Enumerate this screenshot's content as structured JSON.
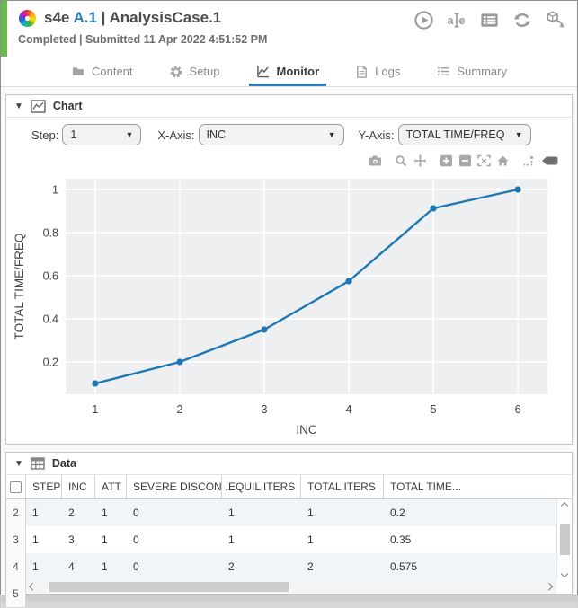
{
  "header": {
    "app_icon": "pinwheel-icon",
    "title_product": "s4e",
    "title_version": "A.1",
    "title_rest": " | AnalysisCase.1",
    "status_line": "Completed | Submitted 11 Apr 2022 4:51:52 PM",
    "actions": [
      {
        "icon": "play-circle-icon"
      },
      {
        "icon": "rename-icon"
      },
      {
        "icon": "details-icon"
      },
      {
        "icon": "refresh-icon"
      },
      {
        "icon": "export-cube-icon"
      }
    ]
  },
  "tabs": [
    {
      "label": "Content",
      "icon": "folder-icon",
      "active": false
    },
    {
      "label": "Setup",
      "icon": "gear-icon",
      "active": false
    },
    {
      "label": "Monitor",
      "icon": "chart-line-icon",
      "active": true
    },
    {
      "label": "Logs",
      "icon": "document-icon",
      "active": false
    },
    {
      "label": "Summary",
      "icon": "list-icon",
      "active": false
    }
  ],
  "chart_panel": {
    "title": "Chart",
    "controls": {
      "step_label": "Step:",
      "step_value": "1",
      "xaxis_label": "X-Axis:",
      "xaxis_value": "INC",
      "yaxis_label": "Y-Axis:",
      "yaxis_value": "TOTAL TIME/FREQ"
    },
    "modebar_icons": [
      "camera-icon",
      "zoom-icon",
      "pan-icon",
      "zoom-in-icon",
      "zoom-out-icon",
      "autoscale-icon",
      "home-icon",
      "spikelines-icon",
      "hover-closest-icon"
    ]
  },
  "chart_data": {
    "type": "line",
    "x": [
      1,
      2,
      3,
      4,
      5,
      6
    ],
    "y": [
      0.1,
      0.2,
      0.35,
      0.575,
      0.9125,
      1.0
    ],
    "xlabel": "INC",
    "ylabel": "TOTAL TIME/FREQ",
    "xticks": [
      1,
      2,
      3,
      4,
      5,
      6
    ],
    "yticks": [
      0.2,
      0.4,
      0.6,
      0.8,
      1
    ],
    "xlim": [
      0.65,
      6.35
    ],
    "ylim": [
      0.05,
      1.05
    ],
    "grid": "on",
    "grid_color": "#ffffff",
    "plot_bg": "#edeff1",
    "line_color": "#1f77b4",
    "legend": "none"
  },
  "data_panel": {
    "title": "Data",
    "columns": [
      "STEP",
      "INC",
      "ATT",
      "SEVERE DISCON ...",
      "EQUIL ITERS",
      "TOTAL ITERS",
      "TOTAL TIME..."
    ],
    "rows": [
      {
        "num": "2",
        "cells": [
          "1",
          "2",
          "1",
          "0",
          "1",
          "1",
          "0.2"
        ]
      },
      {
        "num": "3",
        "cells": [
          "1",
          "3",
          "1",
          "0",
          "1",
          "1",
          "0.35"
        ]
      },
      {
        "num": "4",
        "cells": [
          "1",
          "4",
          "1",
          "0",
          "2",
          "2",
          "0.575"
        ]
      },
      {
        "num": "5",
        "cells": []
      }
    ]
  },
  "colors": {
    "accent_blue": "#2e7db6",
    "status_green": "#67bd4a",
    "series_blue": "#1f77b4",
    "icon_gray": "#9a9a9a"
  }
}
